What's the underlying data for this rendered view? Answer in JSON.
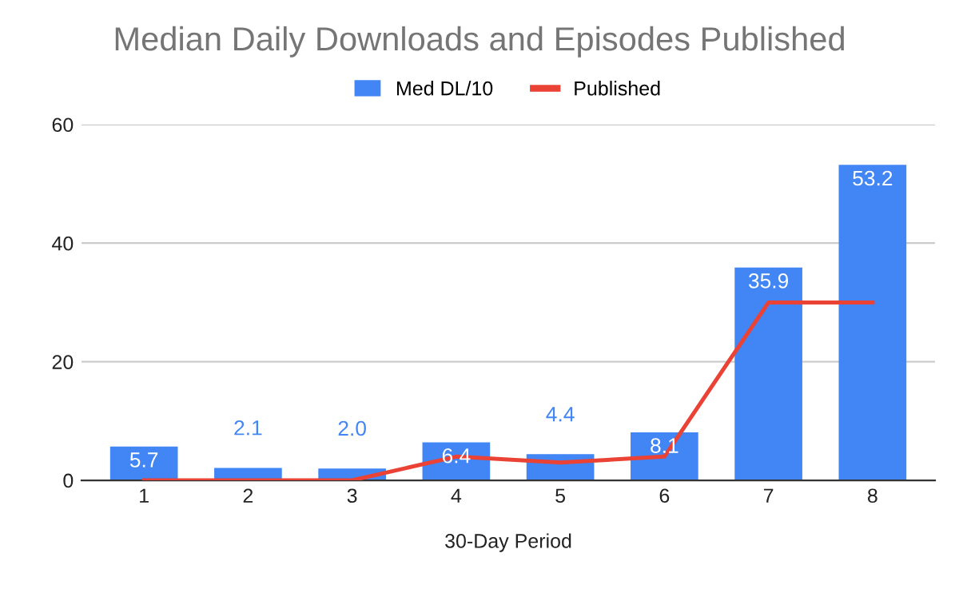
{
  "chart_data": {
    "type": "bar",
    "title": "Median Daily Downloads and Episodes Published",
    "xlabel": "30-Day Period",
    "categories": [
      "1",
      "2",
      "3",
      "4",
      "5",
      "6",
      "7",
      "8"
    ],
    "series": [
      {
        "name": "Med DL/10",
        "color": "#4285f4",
        "values": [
          5.7,
          2.1,
          2.0,
          6.4,
          4.4,
          8.1,
          35.9,
          53.2
        ],
        "value_labels": [
          "5.7",
          "2.1",
          "2.0",
          "6.4",
          "4.4",
          "8.1",
          "35.9",
          "53.2"
        ]
      },
      {
        "name": "Published",
        "type": "line",
        "color": "#ea4335",
        "values": [
          0,
          0,
          0,
          4,
          3,
          4,
          30,
          30
        ]
      }
    ],
    "ylim": [
      0,
      60
    ],
    "yticks": [
      0,
      20,
      40,
      60
    ],
    "grid": "y",
    "legend": "top",
    "marker": "none",
    "line_style": "solid"
  }
}
